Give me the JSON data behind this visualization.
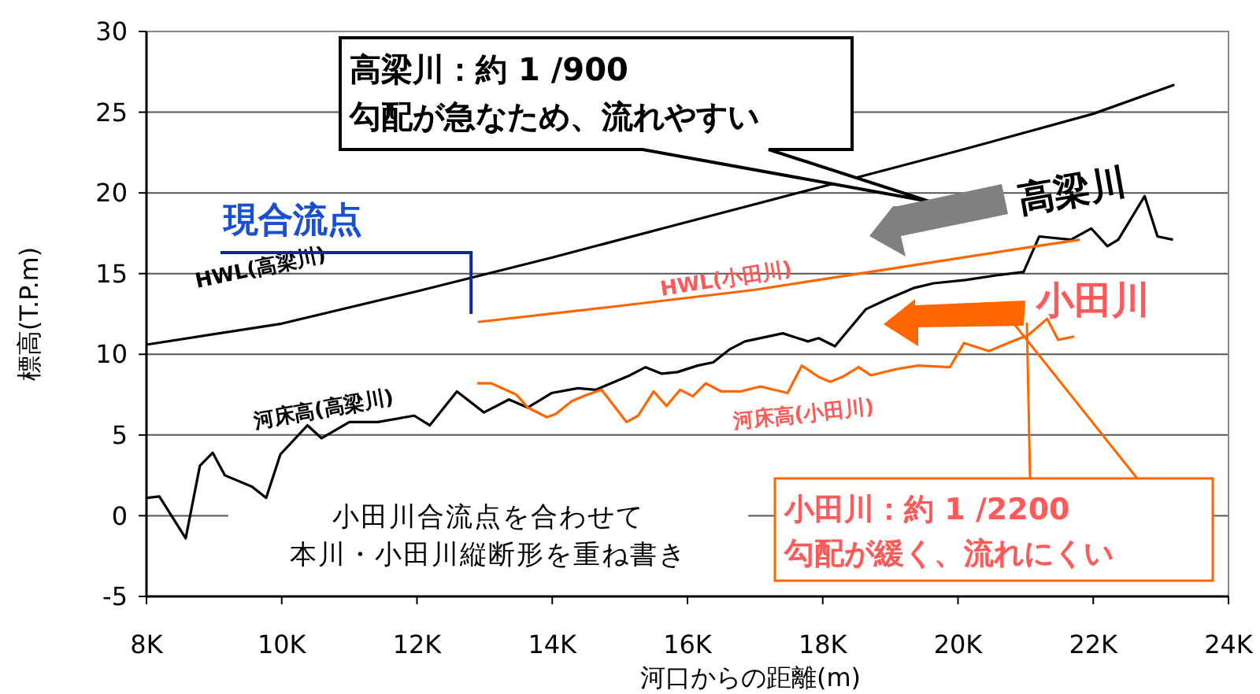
{
  "chart_data": {
    "type": "line",
    "xlabel": "河口からの距離(m)",
    "ylabel": "標高(T.P.m)",
    "xlim": [
      8000,
      24000
    ],
    "ylim": [
      -5,
      30
    ],
    "xticks": [
      {
        "value": 8000,
        "label": "8K"
      },
      {
        "value": 10000,
        "label": "10K"
      },
      {
        "value": 12000,
        "label": "12K"
      },
      {
        "value": 14000,
        "label": "14K"
      },
      {
        "value": 16000,
        "label": "16K"
      },
      {
        "value": 18000,
        "label": "18K"
      },
      {
        "value": 20000,
        "label": "20K"
      },
      {
        "value": 22000,
        "label": "22K"
      },
      {
        "value": 24000,
        "label": "24K"
      }
    ],
    "yticks": [
      -5,
      0,
      5,
      10,
      15,
      20,
      25,
      30
    ],
    "grid": "y",
    "marker": "none",
    "line_style": "solid",
    "series": [
      {
        "name": "HWL(高梁川)",
        "color": "#000000",
        "x": [
          8000,
          10000,
          12000,
          14000,
          16000,
          18000,
          20000,
          22000,
          23200
        ],
        "values": [
          10.6,
          11.9,
          13.9,
          16.0,
          18.2,
          20.4,
          22.6,
          24.9,
          26.7
        ]
      },
      {
        "name": "河床高(高梁川)",
        "color": "#000000",
        "x": [
          8000,
          8190,
          8580,
          8790,
          8980,
          9160,
          9560,
          9770,
          9980,
          10380,
          10590,
          11000,
          11420,
          11960,
          12190,
          12590,
          12990,
          13360,
          13640,
          13990,
          14380,
          14640,
          15150,
          15380,
          15620,
          15850,
          16150,
          16380,
          16620,
          16850,
          17410,
          17780,
          17940,
          18180,
          18640,
          18950,
          19340,
          19640,
          20110,
          20580,
          20970,
          21200,
          21670,
          21970,
          22210,
          22370,
          22760,
          22950,
          23180
        ],
        "values": [
          1.1,
          1.2,
          -1.4,
          3.1,
          3.9,
          2.5,
          1.8,
          1.1,
          3.8,
          5.6,
          4.8,
          5.8,
          5.8,
          6.2,
          5.6,
          7.7,
          6.4,
          7.2,
          6.7,
          7.6,
          7.9,
          7.8,
          8.7,
          9.2,
          8.8,
          8.9,
          9.3,
          9.5,
          10.3,
          10.8,
          11.3,
          10.8,
          11.0,
          10.5,
          12.8,
          13.4,
          14.1,
          14.4,
          14.6,
          14.9,
          15.1,
          17.3,
          17.1,
          17.8,
          16.7,
          17.1,
          19.8,
          17.3,
          17.1
        ]
      },
      {
        "name": "HWL(小田川)",
        "color": "#ff6600",
        "x": [
          12900,
          15000,
          17000,
          19000,
          21000,
          21800
        ],
        "values": [
          12.0,
          13.0,
          14.0,
          15.3,
          16.6,
          17.1
        ]
      },
      {
        "name": "河床高(小田川)",
        "color": "#ff6600",
        "x": [
          12890,
          13100,
          13470,
          13640,
          13920,
          14050,
          14290,
          14520,
          14730,
          15100,
          15270,
          15500,
          15690,
          15890,
          16080,
          16270,
          16500,
          16780,
          17080,
          17480,
          17690,
          17940,
          18110,
          18290,
          18530,
          18710,
          19110,
          19410,
          19880,
          20090,
          20460,
          20740,
          21040,
          21320,
          21480,
          21720
        ],
        "values": [
          8.2,
          8.2,
          7.5,
          6.7,
          6.1,
          6.3,
          7.1,
          7.5,
          7.8,
          5.8,
          6.2,
          7.7,
          6.8,
          7.8,
          7.4,
          8.2,
          7.7,
          7.7,
          8.0,
          7.6,
          9.3,
          8.6,
          8.3,
          8.6,
          9.2,
          8.7,
          9.1,
          9.3,
          9.2,
          10.7,
          10.2,
          10.7,
          11.2,
          12.2,
          10.9,
          11.1
        ]
      }
    ],
    "annotations": [
      "高梁川：約 1 /900\n勾配が急なため、流れやすい",
      "小田川：約 1 /2200\n勾配が緩く、流れにくい",
      "現合流点",
      "高梁川",
      "小田川",
      "小田川合流点を合わせて",
      "本川・小田川縦断形を重ね書き"
    ]
  }
}
